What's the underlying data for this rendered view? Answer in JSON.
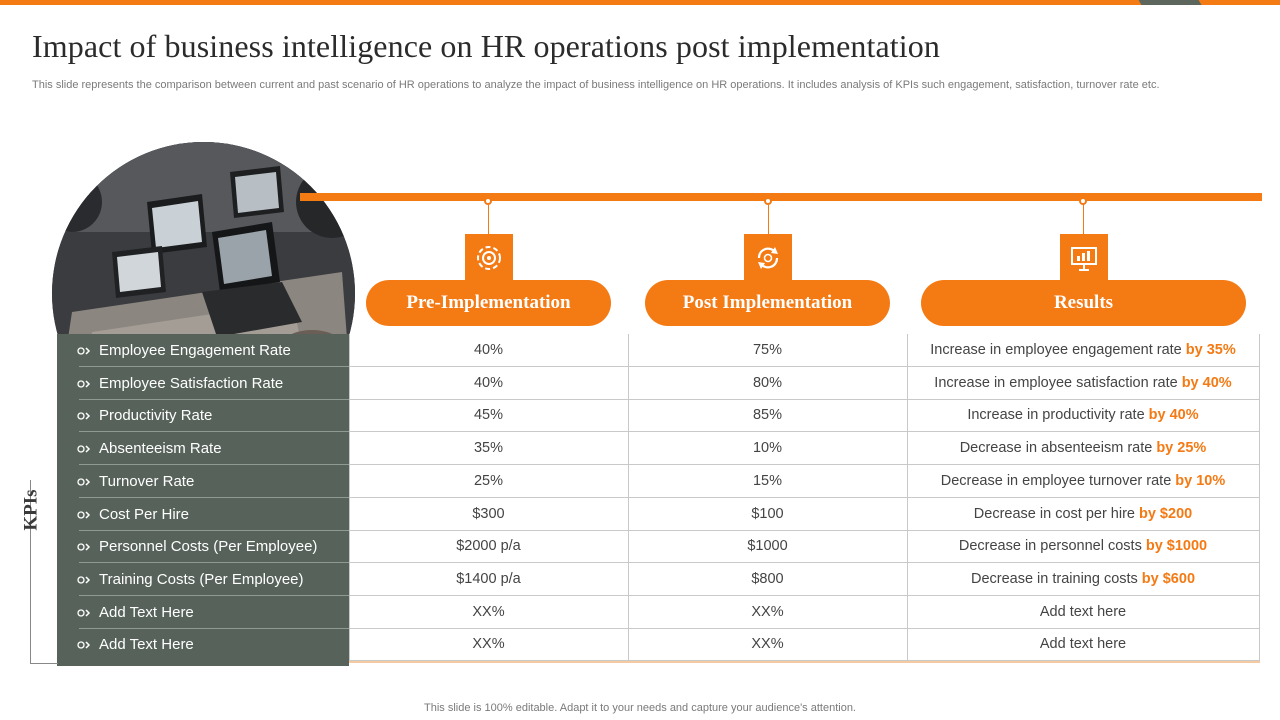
{
  "slide": {
    "title": "Impact of business intelligence on HR operations post implementation",
    "subtitle": "This slide represents the comparison between current and past scenario of HR operations to analyze the impact of business intelligence on HR operations. It includes analysis of KPIs such engagement, satisfaction, turnover rate etc.",
    "footer": "This slide is 100% editable. Adapt it to your needs and capture your audience's attention.",
    "side_label": "KPIs"
  },
  "colors": {
    "accent": "#f47a14",
    "panel": "#57635a"
  },
  "columns": [
    {
      "label": "Pre-Implementation",
      "icon": "gear-cycle-icon"
    },
    {
      "label": "Post Implementation",
      "icon": "refresh-cycle-icon"
    },
    {
      "label": "Results",
      "icon": "presentation-chart-icon"
    }
  ],
  "rows": [
    {
      "kpi": "Employee Engagement Rate",
      "pre": "40%",
      "post": "75%",
      "result": "Increase in employee engagement rate",
      "result_hl": "by 35%"
    },
    {
      "kpi": "Employee Satisfaction Rate",
      "pre": "40%",
      "post": "80%",
      "result": "Increase in employee satisfaction rate",
      "result_hl": "by 40%"
    },
    {
      "kpi": "Productivity Rate",
      "pre": "45%",
      "post": "85%",
      "result": "Increase in productivity rate",
      "result_hl": "by 40%"
    },
    {
      "kpi": "Absenteeism Rate",
      "pre": "35%",
      "post": "10%",
      "result": "Decrease in absenteeism rate",
      "result_hl": "by 25%"
    },
    {
      "kpi": "Turnover Rate",
      "pre": "25%",
      "post": "15%",
      "result": "Decrease in employee turnover rate",
      "result_hl": "by 10%"
    },
    {
      "kpi": "Cost Per Hire",
      "pre": "$300",
      "post": "$100",
      "result": "Decrease in cost per hire",
      "result_hl": "by $200"
    },
    {
      "kpi": "Personnel Costs (Per Employee)",
      "pre": "$2000 p/a",
      "post": "$1000",
      "result": "Decrease in personnel costs",
      "result_hl": "by $1000"
    },
    {
      "kpi": "Training Costs (Per Employee)",
      "pre": "$1400 p/a",
      "post": "$800",
      "result": "Decrease in training costs",
      "result_hl": "by $600"
    },
    {
      "kpi": "Add Text Here",
      "pre": "XX%",
      "post": "XX%",
      "result": "Add text here",
      "result_hl": ""
    },
    {
      "kpi": "Add Text Here",
      "pre": "XX%",
      "post": "XX%",
      "result": "Add text here",
      "result_hl": ""
    }
  ]
}
